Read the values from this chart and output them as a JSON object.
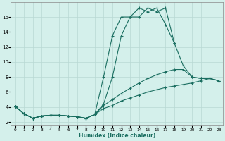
{
  "xlabel": "Humidex (Indice chaleur)",
  "background_color": "#d4f0eb",
  "grid_color": "#b8d8d4",
  "line_color": "#1a6e60",
  "xlim": [
    -0.5,
    23.5
  ],
  "ylim": [
    1.5,
    18
  ],
  "yticks": [
    2,
    4,
    6,
    8,
    10,
    12,
    14,
    16
  ],
  "xticks": [
    0,
    1,
    2,
    3,
    4,
    5,
    6,
    7,
    8,
    9,
    10,
    11,
    12,
    13,
    14,
    15,
    16,
    17,
    18,
    19,
    20,
    21,
    22,
    23
  ],
  "xtick_labels": [
    "0",
    "1",
    "2",
    "3",
    "4",
    "5",
    "6",
    "7",
    "8",
    "9",
    "10",
    "11",
    "12",
    "13",
    "14",
    "15",
    "16",
    "17",
    "18",
    "19",
    "20",
    "21",
    "22",
    "23"
  ],
  "series": [
    {
      "x": [
        0,
        1,
        2,
        3,
        4,
        5,
        6,
        7,
        8,
        9,
        10,
        11,
        12,
        13,
        14,
        15,
        16,
        17,
        18,
        19,
        20,
        21,
        22,
        23
      ],
      "y": [
        4.1,
        3.1,
        2.5,
        2.8,
        2.9,
        2.9,
        2.8,
        2.7,
        2.5,
        3.0,
        8.0,
        13.5,
        16.0,
        16.0,
        17.2,
        16.7,
        17.2,
        15.0,
        12.5,
        null,
        null,
        null,
        null,
        null
      ]
    },
    {
      "x": [
        0,
        1,
        2,
        3,
        4,
        5,
        6,
        7,
        8,
        9,
        10,
        11,
        12,
        13,
        14,
        15,
        16,
        17,
        18,
        19,
        20,
        21,
        22,
        23
      ],
      "y": [
        4.1,
        3.1,
        2.5,
        2.8,
        2.9,
        2.9,
        2.8,
        2.7,
        2.5,
        3.0,
        4.4,
        8.0,
        13.5,
        16.0,
        16.0,
        17.2,
        16.7,
        17.2,
        12.5,
        9.5,
        8.0,
        7.8,
        7.8,
        7.5
      ]
    },
    {
      "x": [
        0,
        1,
        2,
        3,
        4,
        5,
        6,
        7,
        8,
        9,
        10,
        11,
        12,
        13,
        14,
        15,
        16,
        17,
        18,
        19,
        20,
        21,
        22,
        23
      ],
      "y": [
        4.1,
        3.1,
        2.5,
        2.8,
        2.9,
        2.9,
        2.8,
        2.7,
        2.5,
        3.0,
        4.2,
        5.0,
        5.8,
        6.5,
        7.2,
        7.8,
        8.3,
        8.7,
        9.0,
        9.0,
        8.0,
        7.8,
        7.8,
        7.5
      ]
    },
    {
      "x": [
        0,
        1,
        2,
        3,
        4,
        5,
        6,
        7,
        8,
        9,
        10,
        11,
        12,
        13,
        14,
        15,
        16,
        17,
        18,
        19,
        20,
        21,
        22,
        23
      ],
      "y": [
        4.1,
        3.1,
        2.5,
        2.8,
        2.9,
        2.9,
        2.8,
        2.7,
        2.5,
        3.0,
        3.8,
        4.2,
        4.8,
        5.2,
        5.6,
        6.0,
        6.3,
        6.6,
        6.8,
        7.0,
        7.2,
        7.5,
        7.8,
        7.5
      ]
    }
  ]
}
